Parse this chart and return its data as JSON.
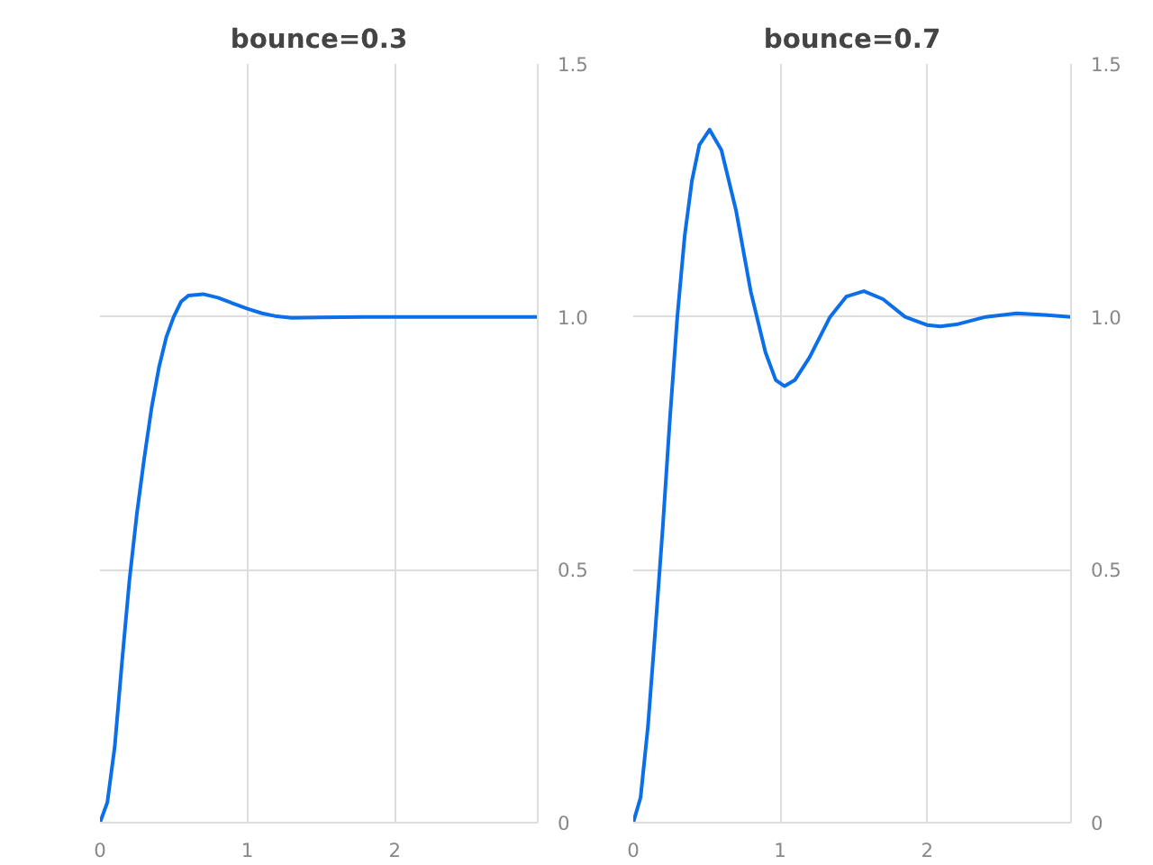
{
  "chart_data": [
    {
      "type": "line",
      "title": "bounce=0.3",
      "x": [
        0,
        0.05,
        0.1,
        0.15,
        0.2,
        0.25,
        0.3,
        0.35,
        0.4,
        0.45,
        0.5,
        0.55,
        0.6,
        0.7,
        0.8,
        0.9,
        1.0,
        1.1,
        1.2,
        1.3,
        1.5,
        1.8,
        2.0,
        2.5,
        2.97
      ],
      "series": [
        {
          "color": "#0a6fe8",
          "values": [
            0,
            0.04,
            0.15,
            0.32,
            0.48,
            0.61,
            0.72,
            0.82,
            0.9,
            0.96,
            1.0,
            1.03,
            1.042,
            1.045,
            1.038,
            1.027,
            1.016,
            1.007,
            1.001,
            0.998,
            0.999,
            1.0,
            1.0,
            1.0,
            1.0
          ]
        }
      ],
      "xlim": [
        0,
        2.97
      ],
      "ylim": [
        0,
        1.5
      ],
      "xticks": [
        0,
        1,
        2
      ],
      "yticks": [
        0,
        0.5,
        {
          "value": 1,
          "label": "1.0"
        },
        1.5
      ],
      "grid": true
    },
    {
      "type": "line",
      "title": "bounce=0.7",
      "x": [
        0,
        0.05,
        0.1,
        0.15,
        0.2,
        0.25,
        0.3,
        0.35,
        0.4,
        0.45,
        0.52,
        0.6,
        0.7,
        0.8,
        0.9,
        0.97,
        1.03,
        1.1,
        1.2,
        1.34,
        1.45,
        1.57,
        1.7,
        1.85,
        2.0,
        2.09,
        2.2,
        2.4,
        2.61,
        2.8,
        2.98
      ],
      "series": [
        {
          "color": "#0a6fe8",
          "values": [
            0,
            0.05,
            0.19,
            0.38,
            0.58,
            0.8,
            1.0,
            1.16,
            1.27,
            1.34,
            1.37,
            1.33,
            1.21,
            1.05,
            0.93,
            0.875,
            0.863,
            0.875,
            0.92,
            1.0,
            1.04,
            1.051,
            1.035,
            1.0,
            0.984,
            0.981,
            0.985,
            1.0,
            1.007,
            1.004,
            1.0
          ]
        }
      ],
      "xlim": [
        0,
        2.98
      ],
      "ylim": [
        0,
        1.5
      ],
      "xticks": [
        0,
        1,
        2
      ],
      "yticks": [
        0,
        0.5,
        {
          "value": 1,
          "label": "1.0"
        },
        1.5
      ],
      "grid": true
    }
  ]
}
